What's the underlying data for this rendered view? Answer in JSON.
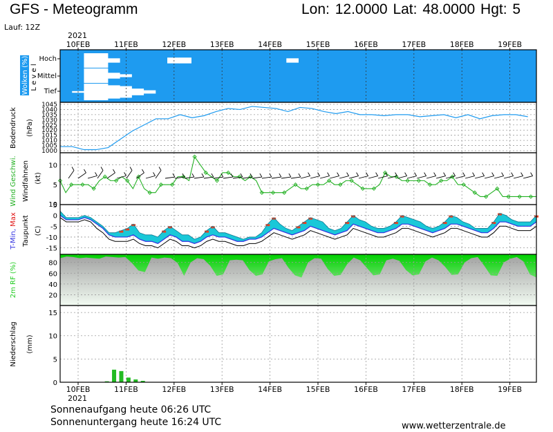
{
  "header": {
    "title": "GFS - Meteogramm",
    "location": "Lon: 12.0000  Lat: 48.0000  Hgt: 5",
    "run": "Lauf: 12Z"
  },
  "time_axis": {
    "year": "2021",
    "days": [
      "10FEB",
      "11FEB",
      "12FEB",
      "13FEB",
      "14FEB",
      "15FEB",
      "16FEB",
      "17FEB",
      "18FEB",
      "19FEB"
    ]
  },
  "footer": {
    "sunrise": "Sonnenaufgang heute 06:26 UTC",
    "sunset": "Sonnenuntergang heute 16:24 UTC",
    "website": "www.wetterzentrale.de"
  },
  "colors": {
    "cloud_sky": "#1e9bf0",
    "pressure": "#1e9bf0",
    "wind": "#22b022",
    "temp_band": "#19c8d8",
    "temp_warm": "#e84020",
    "tmin_line": "#3030e0",
    "rh": "#22cc22",
    "precip": "#22bb22",
    "axis_blue": "#1e9bf0",
    "max_red": "#e01010"
  },
  "chart_data": [
    {
      "type": "area",
      "panel": "clouds",
      "ylabel": "Wolken (%)",
      "ylabel2": "L e v e l",
      "levels": [
        "Hoch",
        "Mittel",
        "Tief"
      ],
      "note": "cloud cover per level; sky shown blue, cloud shown white",
      "high_cover_pct": [
        0,
        0,
        100,
        100,
        30,
        0,
        0,
        0,
        0,
        40,
        40,
        0,
        0,
        0,
        0,
        0,
        0,
        0,
        0,
        30,
        0,
        0,
        0,
        0,
        0,
        0,
        0,
        0,
        0,
        0,
        0,
        0,
        0,
        0,
        0,
        0,
        0,
        0,
        0,
        0
      ],
      "mid_cover_pct": [
        0,
        0,
        100,
        100,
        40,
        20,
        0,
        0,
        0,
        0,
        0,
        0,
        0,
        0,
        0,
        0,
        0,
        0,
        0,
        0,
        0,
        0,
        0,
        0,
        0,
        0,
        0,
        0,
        0,
        0,
        0,
        0,
        0,
        0,
        0,
        0,
        0,
        0,
        0,
        0
      ],
      "low_cover_pct": [
        0,
        10,
        100,
        100,
        80,
        70,
        40,
        20,
        0,
        0,
        0,
        0,
        0,
        0,
        0,
        0,
        0,
        0,
        0,
        0,
        0,
        0,
        0,
        0,
        0,
        0,
        0,
        0,
        0,
        0,
        0,
        0,
        0,
        0,
        0,
        0,
        0,
        0,
        0,
        0
      ]
    },
    {
      "type": "line",
      "panel": "pressure",
      "ylabel": "Bodendruck",
      "unit": "(hPa)",
      "yticks": [
        1000,
        1005,
        1010,
        1015,
        1020,
        1025,
        1030,
        1035,
        1040,
        1045
      ],
      "ylim": [
        998,
        1047
      ],
      "x_days": [
        0,
        0.25,
        0.5,
        0.75,
        1,
        1.25,
        1.5,
        1.75,
        2,
        2.25,
        2.5,
        2.75,
        3,
        3.25,
        3.5,
        3.75,
        4,
        4.25,
        4.5,
        4.75,
        5,
        5.25,
        5.5,
        5.75,
        6,
        6.25,
        6.5,
        6.75,
        7,
        7.25,
        7.5,
        7.75,
        8,
        8.25,
        8.5,
        8.75,
        9,
        9.25,
        9.5,
        9.75
      ],
      "values": [
        1004,
        1004,
        1001,
        1001,
        1003,
        1011,
        1019,
        1025,
        1031,
        1031,
        1035,
        1032,
        1034,
        1038,
        1041,
        1040,
        1043,
        1042,
        1041,
        1038,
        1042,
        1041,
        1038,
        1036,
        1038,
        1035,
        1035,
        1034,
        1035,
        1035,
        1033,
        1034,
        1035,
        1032,
        1035,
        1031,
        1034,
        1035,
        1035,
        1033
      ]
    },
    {
      "type": "line",
      "panel": "wind",
      "ylabel": "Wind Geschwi.",
      "ylabel2": "Windfahnen",
      "unit": "(kt)",
      "yticks": [
        5,
        10
      ],
      "ylim": [
        0,
        13
      ],
      "values": [
        6,
        3,
        5,
        5,
        5,
        5,
        4,
        6,
        7,
        6,
        6,
        7,
        6,
        4,
        7,
        4,
        3,
        3,
        5,
        5,
        5,
        7,
        7,
        6,
        12,
        10,
        8,
        7,
        6,
        8,
        8,
        7,
        7,
        6,
        7,
        6,
        3,
        3,
        3,
        3,
        3,
        4,
        5,
        4,
        4,
        5,
        5,
        5,
        6,
        5,
        5,
        6,
        6,
        5,
        4,
        4,
        4,
        5,
        8,
        7,
        7,
        6,
        6,
        6,
        6,
        6,
        5,
        5,
        6,
        6,
        7,
        5,
        5,
        4,
        3,
        2,
        2,
        3,
        4,
        2,
        2,
        2,
        2,
        2,
        2,
        2
      ]
    },
    {
      "type": "line",
      "panel": "temperature",
      "ylabel": "T-Min, Max",
      "ylabel2": "Taupunkt",
      "unit": "(C)",
      "yticks": [
        5,
        0,
        -5,
        -10,
        -15
      ],
      "ylim": [
        -18,
        5
      ],
      "series": [
        {
          "name": "T-Max",
          "values": [
            2,
            -1,
            -1,
            -1,
            0,
            -1,
            -3,
            -5,
            -8,
            -8,
            -7,
            -6,
            -4,
            -8,
            -9,
            -9,
            -10,
            -7,
            -5,
            -7,
            -9,
            -9,
            -11,
            -10,
            -7,
            -5,
            -8,
            -8,
            -9,
            -10,
            -11,
            -10,
            -10,
            -8,
            -4,
            -1,
            -4,
            -6,
            -7,
            -5,
            -3,
            -1,
            -2,
            -3,
            -6,
            -7,
            -6,
            -3,
            0,
            -2,
            -3,
            -5,
            -6,
            -6,
            -5,
            -3,
            0,
            -1,
            -2,
            -3,
            -5,
            -6,
            -5,
            -3,
            0,
            -1,
            -3,
            -4,
            -6,
            -6,
            -6,
            -3,
            1,
            0,
            -2,
            -3,
            -3,
            -3,
            0
          ]
        },
        {
          "name": "T-Min",
          "values": [
            0,
            -2,
            -2,
            -2,
            -1,
            -2,
            -4,
            -6,
            -9,
            -10,
            -10,
            -10,
            -9,
            -11,
            -12,
            -12,
            -13,
            -11,
            -9,
            -10,
            -12,
            -12,
            -13,
            -12,
            -10,
            -9,
            -10,
            -10,
            -11,
            -12,
            -12,
            -11,
            -11,
            -10,
            -8,
            -6,
            -7,
            -8,
            -9,
            -8,
            -7,
            -5,
            -6,
            -7,
            -8,
            -9,
            -8,
            -7,
            -4,
            -5,
            -6,
            -7,
            -8,
            -8,
            -7,
            -6,
            -4,
            -4,
            -5,
            -6,
            -7,
            -8,
            -7,
            -6,
            -4,
            -4,
            -5,
            -6,
            -7,
            -8,
            -8,
            -6,
            -3,
            -3,
            -4,
            -5,
            -5,
            -5,
            -3
          ]
        },
        {
          "name": "Taupunkt",
          "values": [
            -1,
            -3,
            -3,
            -3,
            -2,
            -3,
            -6,
            -8,
            -11,
            -12,
            -12,
            -12,
            -11,
            -13,
            -14,
            -14,
            -15,
            -13,
            -11,
            -12,
            -14,
            -14,
            -15,
            -14,
            -12,
            -11,
            -12,
            -12,
            -13,
            -14,
            -14,
            -13,
            -13,
            -12,
            -10,
            -8,
            -9,
            -10,
            -11,
            -10,
            -9,
            -7,
            -8,
            -9,
            -10,
            -11,
            -10,
            -9,
            -6,
            -7,
            -8,
            -9,
            -10,
            -10,
            -9,
            -8,
            -6,
            -6,
            -7,
            -8,
            -9,
            -10,
            -9,
            -8,
            -6,
            -6,
            -7,
            -8,
            -9,
            -10,
            -10,
            -8,
            -5,
            -5,
            -6,
            -7,
            -7,
            -7,
            -5
          ]
        }
      ]
    },
    {
      "type": "area",
      "panel": "humidity",
      "ylabel": "2m RF (%)",
      "yticks": [
        20,
        40,
        60,
        80
      ],
      "ylim": [
        0,
        95
      ],
      "values": [
        88,
        91,
        90,
        88,
        89,
        88,
        87,
        91,
        90,
        89,
        90,
        79,
        65,
        62,
        89,
        87,
        89,
        88,
        79,
        55,
        80,
        88,
        86,
        74,
        55,
        58,
        84,
        85,
        84,
        66,
        55,
        58,
        82,
        86,
        88,
        70,
        56,
        52,
        80,
        88,
        87,
        68,
        55,
        57,
        77,
        89,
        84,
        70,
        56,
        58,
        84,
        87,
        83,
        66,
        56,
        58,
        82,
        89,
        84,
        72,
        57,
        58,
        80,
        88,
        90,
        74,
        56,
        55,
        80,
        87,
        90,
        82,
        58,
        52
      ]
    },
    {
      "type": "bar",
      "panel": "precipitation",
      "ylabel": "Niederschlag",
      "unit": "(mm)",
      "yticks": [
        0,
        5,
        10,
        15
      ],
      "ylim": [
        0,
        16.5
      ],
      "x_days": [
        0.6,
        0.75,
        0.9,
        1.05,
        1.2,
        1.35
      ],
      "values": [
        0.2,
        2.7,
        2.4,
        1.0,
        0.6,
        0.3
      ]
    }
  ]
}
